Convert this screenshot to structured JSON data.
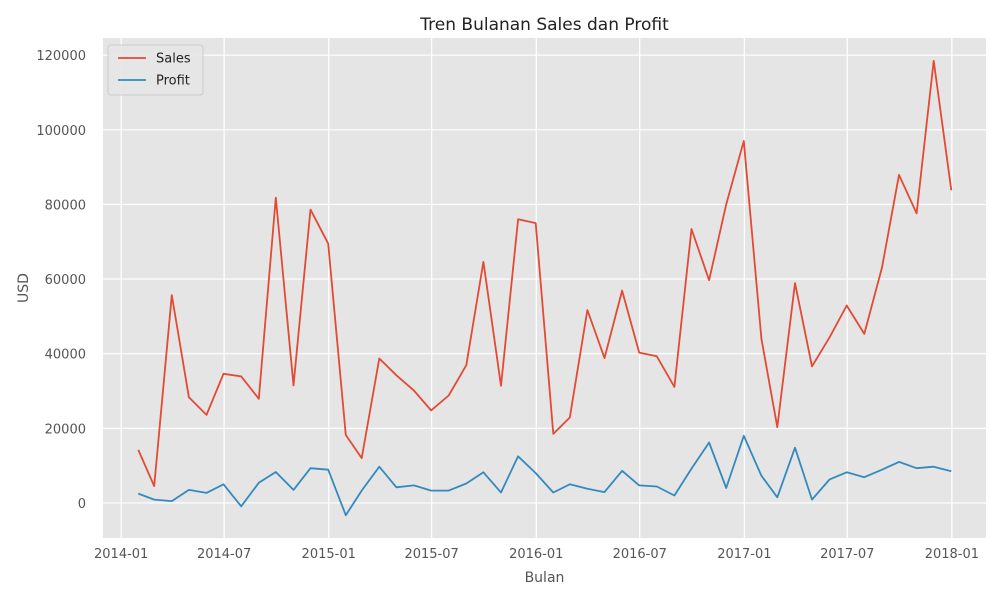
{
  "chart_data": {
    "type": "line",
    "title": "Tren Bulanan Sales dan Profit",
    "xlabel": "Bulan",
    "ylabel": "USD",
    "x": [
      "2014-01-31",
      "2014-02-28",
      "2014-03-31",
      "2014-04-30",
      "2014-05-31",
      "2014-06-30",
      "2014-07-31",
      "2014-08-31",
      "2014-09-30",
      "2014-10-31",
      "2014-11-30",
      "2014-12-31",
      "2015-01-31",
      "2015-02-28",
      "2015-03-31",
      "2015-04-30",
      "2015-05-31",
      "2015-06-30",
      "2015-07-31",
      "2015-08-31",
      "2015-09-30",
      "2015-10-31",
      "2015-11-30",
      "2015-12-31",
      "2016-01-31",
      "2016-02-29",
      "2016-03-31",
      "2016-04-30",
      "2016-05-31",
      "2016-06-30",
      "2016-07-31",
      "2016-08-31",
      "2016-09-30",
      "2016-10-31",
      "2016-11-30",
      "2016-12-31",
      "2017-01-31",
      "2017-02-28",
      "2017-03-31",
      "2017-04-30",
      "2017-05-31",
      "2017-06-30",
      "2017-07-31",
      "2017-08-31",
      "2017-09-30",
      "2017-10-31",
      "2017-11-30",
      "2017-12-31"
    ],
    "series": [
      {
        "name": "Sales",
        "color": "#e24a33",
        "values": [
          14200,
          4500,
          55700,
          28300,
          23600,
          34600,
          33900,
          27900,
          81800,
          31500,
          78600,
          69500,
          18200,
          12000,
          38700,
          34200,
          30100,
          24800,
          28800,
          36900,
          64600,
          31400,
          76000,
          75000,
          18500,
          22900,
          51700,
          38800,
          56900,
          40300,
          39300,
          31100,
          73400,
          59700,
          80000,
          97000,
          44000,
          20300,
          58900,
          36600,
          44400,
          52900,
          45300,
          63100,
          87900,
          77600,
          118500,
          83800
        ]
      },
      {
        "name": "Profit",
        "color": "#348abd",
        "values": [
          2500,
          900,
          500,
          3500,
          2700,
          5000,
          -900,
          5400,
          8300,
          3500,
          9300,
          8900,
          -3300,
          3300,
          9700,
          4200,
          4700,
          3300,
          3300,
          5200,
          8200,
          2800,
          12500,
          8000,
          2800,
          5000,
          3800,
          2900,
          8600,
          4700,
          4400,
          2000,
          9200,
          16200,
          4000,
          18000,
          7300,
          1500,
          14800,
          900,
          6300,
          8200,
          6900,
          8900,
          11000,
          9300,
          9700,
          8500
        ]
      }
    ],
    "xticks": [
      "2014-01",
      "2014-07",
      "2015-01",
      "2015-07",
      "2016-01",
      "2016-07",
      "2017-01",
      "2017-07",
      "2018-01"
    ],
    "yticks": [
      0,
      20000,
      40000,
      60000,
      80000,
      100000,
      120000
    ],
    "xlim": [
      "2013-11-30",
      "2018-03-02"
    ],
    "ylim": [
      -9400,
      124600
    ],
    "grid": true,
    "legend": "top-left",
    "background": "#e5e5e5",
    "grid_color": "#ffffff"
  }
}
